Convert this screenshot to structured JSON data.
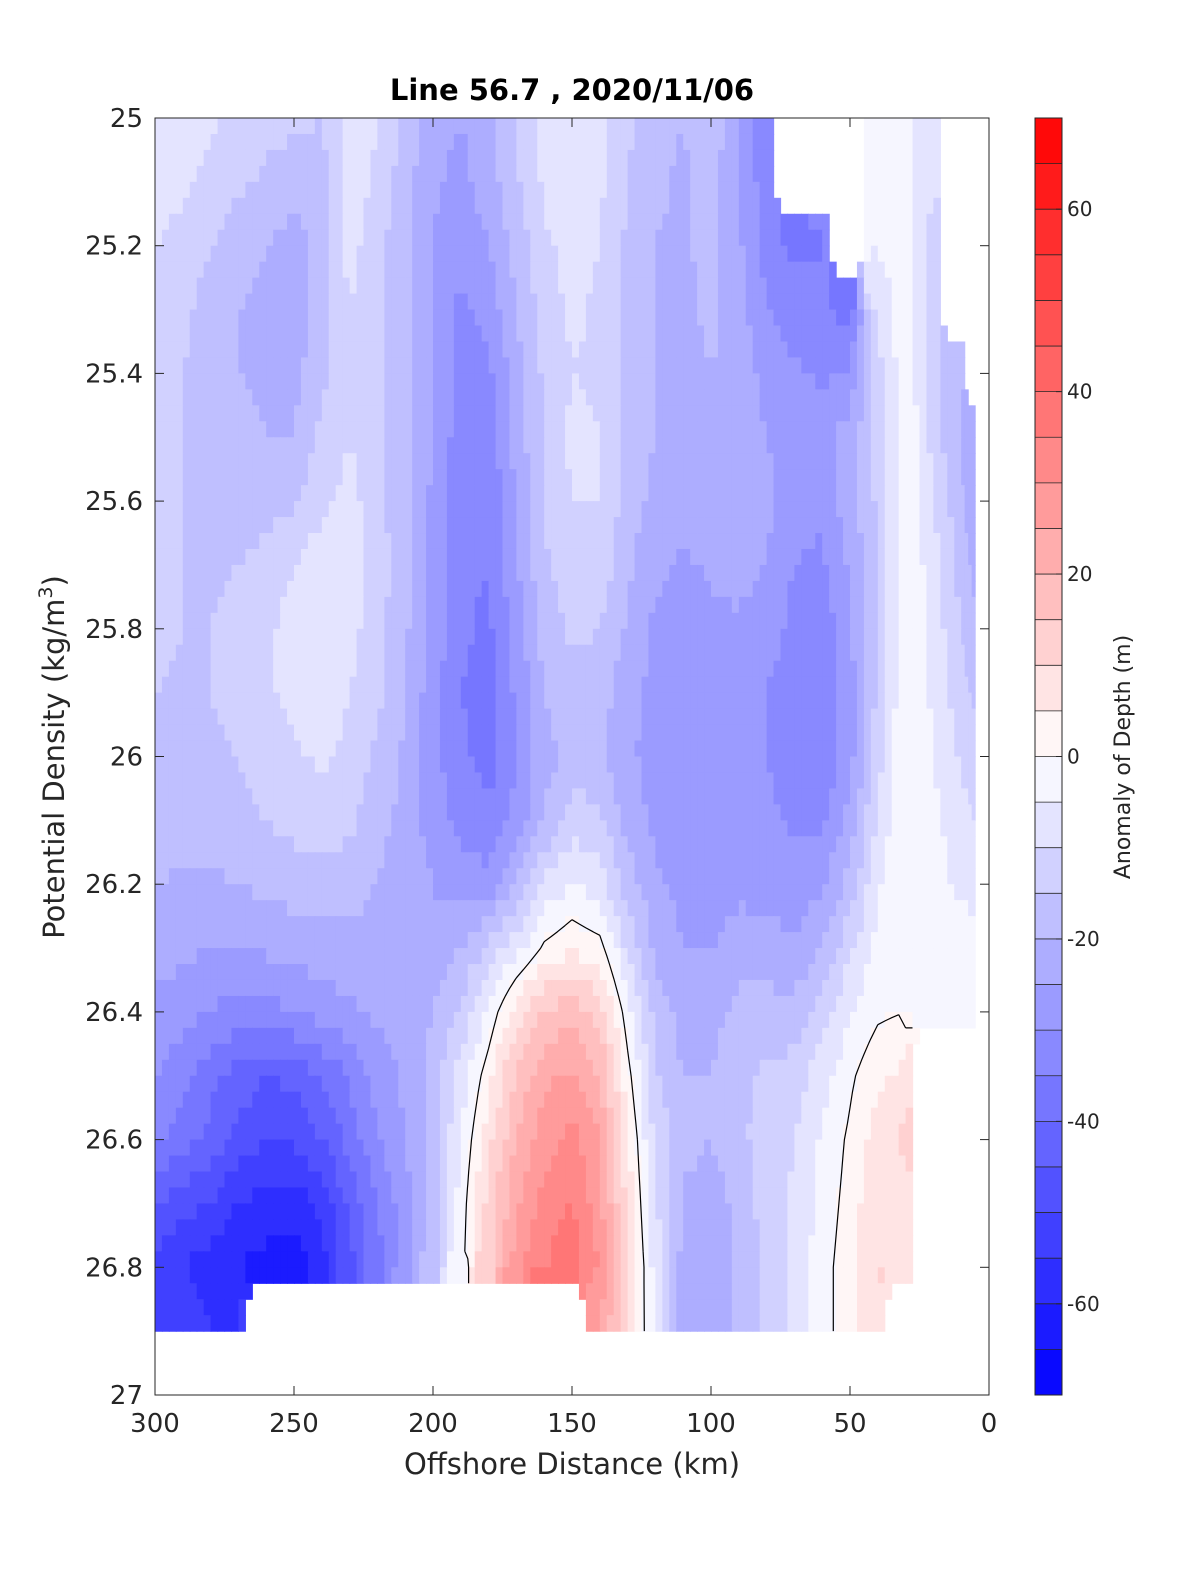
{
  "chart_data": {
    "type": "heatmap",
    "title": "Line 56.7 , 2020/11/06",
    "xlabel": "Offshore Distance (km)",
    "ylabel_main": "Potential Density (kg/m",
    "ylabel_sup": "3",
    "ylabel_close": ")",
    "colorbar_label": "Anomaly of Depth (m)",
    "xlim": [
      300,
      0
    ],
    "ylim": [
      25,
      27
    ],
    "x_reversed": true,
    "y_reversed": true,
    "xticks": [
      300,
      250,
      200,
      150,
      100,
      50,
      0
    ],
    "xtick_labels": [
      "300",
      "250",
      "200",
      "150",
      "100",
      "50",
      "0"
    ],
    "yticks": [
      25,
      25.2,
      25.4,
      25.6,
      25.8,
      26,
      26.2,
      26.4,
      26.6,
      26.8,
      27
    ],
    "ytick_labels": [
      "25",
      "25.2",
      "25.4",
      "25.6",
      "25.8",
      "26",
      "26.2",
      "26.4",
      "26.6",
      "26.8",
      "27"
    ],
    "colorbar_range": [
      -70,
      70
    ],
    "colorbar_step": 5,
    "colorbar_ticks": [
      -60,
      -40,
      -20,
      0,
      20,
      40,
      60
    ],
    "colorbar_tick_labels": [
      "-60",
      "-40",
      "-20",
      "0",
      "20",
      "40",
      "60"
    ],
    "zero_contour": true,
    "x": [
      300,
      290,
      280,
      270,
      260,
      250,
      240,
      230,
      220,
      210,
      200,
      190,
      180,
      170,
      160,
      150,
      140,
      130,
      120,
      110,
      100,
      90,
      80,
      70,
      60,
      50,
      40,
      30,
      20,
      10,
      5
    ],
    "y": [
      25.0,
      25.1,
      25.2,
      25.3,
      25.4,
      25.5,
      25.6,
      25.7,
      25.8,
      25.9,
      26.0,
      26.1,
      26.2,
      26.3,
      26.4,
      26.5,
      26.6,
      26.7,
      26.8,
      26.9
    ],
    "values": [
      [
        -7,
        -8,
        -9,
        -11,
        -13,
        -14,
        -15,
        -7,
        -10,
        -17,
        -22,
        -25,
        -21,
        -15,
        -8,
        -6,
        -8,
        -14,
        -18,
        -20,
        -17,
        -24,
        -35,
        null,
        null,
        null,
        -2,
        -3,
        -10,
        null,
        null
      ],
      [
        -8,
        -9,
        -11,
        -14,
        -16,
        -18,
        -17,
        -7,
        -11,
        -18,
        -24,
        -27,
        -22,
        -16,
        -9,
        -7,
        -9,
        -15,
        -19,
        -21,
        -18,
        -25,
        -33,
        null,
        null,
        null,
        -3,
        -2,
        -10,
        null,
        null
      ],
      [
        -10,
        -12,
        -15,
        -18,
        -20,
        -22,
        -18,
        -8,
        -13,
        -19,
        -25,
        -29,
        -25,
        -18,
        -11,
        -8,
        -10,
        -16,
        -20,
        -21,
        -18,
        -24,
        -32,
        -36,
        -35,
        null,
        -5,
        -2,
        -12,
        null,
        null
      ],
      [
        -12,
        -14,
        -17,
        -20,
        -22,
        -23,
        -18,
        -10,
        -14,
        -19,
        -25,
        -31,
        -28,
        -20,
        -13,
        -9,
        -11,
        -16,
        -20,
        -21,
        -19,
        -23,
        -30,
        -33,
        -34,
        -37,
        -8,
        -2,
        -13,
        null,
        null
      ],
      [
        -13,
        -15,
        -18,
        -20,
        -21,
        -22,
        -16,
        -11,
        -14,
        -19,
        -25,
        -33,
        -31,
        -22,
        -14,
        -10,
        -11,
        -16,
        -20,
        -22,
        -20,
        -21,
        -27,
        -29,
        -31,
        -29,
        -12,
        -1,
        -13,
        -20,
        null
      ],
      [
        -14,
        -15,
        -18,
        -19,
        -20,
        -20,
        -14,
        -10,
        -14,
        -19,
        -25,
        -33,
        -33,
        -23,
        -14,
        -9,
        -10,
        -16,
        -20,
        -22,
        -20,
        -20,
        -25,
        -27,
        -27,
        -22,
        -14,
        0,
        -12,
        -21,
        -25
      ],
      [
        -14,
        -15,
        -17,
        -18,
        -17,
        -16,
        -11,
        -8,
        -13,
        -19,
        -26,
        -34,
        -35,
        -25,
        -15,
        -10,
        -10,
        -17,
        -22,
        -24,
        -22,
        -21,
        -24,
        -27,
        -29,
        -22,
        -14,
        0,
        -10,
        -19,
        -24
      ],
      [
        -14,
        -15,
        -16,
        -15,
        -13,
        -10,
        -7,
        -8,
        -12,
        -19,
        -27,
        -34,
        -35,
        -26,
        -16,
        -11,
        -12,
        -19,
        -24,
        -26,
        -24,
        -23,
        -25,
        -30,
        -31,
        -24,
        -15,
        0,
        -8,
        -17,
        -22
      ],
      [
        -14,
        -15,
        -15,
        -14,
        -11,
        -8,
        -5,
        -8,
        -13,
        -19,
        -27,
        -34,
        -36,
        -28,
        -18,
        -14,
        -15,
        -21,
        -26,
        -28,
        -27,
        -26,
        -27,
        -32,
        -33,
        -26,
        -15,
        0,
        -7,
        -15,
        -19
      ],
      [
        -15,
        -16,
        -15,
        -14,
        -11,
        -8,
        -5,
        -10,
        -14,
        -20,
        -28,
        -35,
        -38,
        -29,
        -20,
        -17,
        -18,
        -23,
        -27,
        -29,
        -29,
        -28,
        -30,
        -33,
        -35,
        -27,
        -14,
        0,
        -6,
        -13,
        -16
      ],
      [
        -16,
        -17,
        -16,
        -15,
        -13,
        -11,
        -9,
        -12,
        -16,
        -21,
        -28,
        -34,
        -37,
        -30,
        -22,
        -18,
        -19,
        -24,
        -27,
        -29,
        -30,
        -29,
        -30,
        -33,
        -35,
        -27,
        -12,
        0,
        -5,
        -11,
        -13
      ],
      [
        -17,
        -18,
        -18,
        -17,
        -15,
        -13,
        -12,
        -14,
        -18,
        -22,
        -27,
        -32,
        -34,
        -28,
        -20,
        -12,
        -14,
        -22,
        -26,
        -28,
        -29,
        -28,
        -29,
        -31,
        -31,
        -23,
        -9,
        0,
        -4,
        -8,
        -10
      ],
      [
        -20,
        -21,
        -21,
        -20,
        -19,
        -18,
        -17,
        -18,
        -20,
        -23,
        -25,
        -28,
        -28,
        -19,
        -9,
        -5,
        -8,
        -17,
        -24,
        -27,
        -27,
        -26,
        -27,
        -28,
        -26,
        -18,
        -6,
        0,
        -3,
        -6,
        -7
      ],
      [
        -23,
        -24,
        -25,
        -25,
        -24,
        -23,
        -22,
        -22,
        -22,
        -24,
        -23,
        -20,
        -14,
        -7,
        1,
        4,
        2,
        -11,
        -21,
        -25,
        -25,
        -23,
        -23,
        -24,
        -20,
        -11,
        -3,
        0,
        -1,
        -2,
        -3
      ],
      [
        -26,
        -28,
        -30,
        -32,
        -32,
        -30,
        -28,
        -26,
        -24,
        -23,
        -20,
        -14,
        -4,
        8,
        15,
        18,
        13,
        -3,
        -17,
        -22,
        -22,
        -18,
        -18,
        -18,
        -13,
        -5,
        -1,
        0,
        -1,
        -1,
        -1
      ],
      [
        -30,
        -34,
        -38,
        -42,
        -45,
        -44,
        -40,
        -34,
        -28,
        -24,
        -18,
        -8,
        3,
        16,
        24,
        26,
        20,
        2,
        -14,
        -20,
        -20,
        -16,
        -14,
        -13,
        -7,
        -1,
        4,
        6,
        null,
        null,
        null
      ],
      [
        -34,
        -38,
        -42,
        -47,
        -50,
        -49,
        -45,
        -38,
        -31,
        -25,
        -17,
        -5,
        8,
        20,
        28,
        32,
        25,
        6,
        -11,
        -18,
        -20,
        -16,
        -13,
        -10,
        -4,
        1,
        8,
        11,
        null,
        null,
        null
      ],
      [
        -45,
        -48,
        -50,
        -55,
        -57,
        -58,
        -53,
        -44,
        -35,
        -27,
        -17,
        -3,
        12,
        24,
        32,
        35,
        27,
        8,
        -9,
        -21,
        -23,
        -18,
        -13,
        -9,
        -3,
        2,
        10,
        9,
        null,
        null,
        null
      ],
      [
        -52,
        -55,
        -58,
        -60,
        -62,
        -63,
        -58,
        -47,
        -37,
        -29,
        -17,
        -2,
        14,
        27,
        35,
        38,
        30,
        10,
        -7,
        -22,
        -25,
        -19,
        -14,
        -9,
        -2,
        3,
        10,
        8,
        null,
        null,
        null
      ],
      [
        -50,
        -52,
        -55,
        -55,
        null,
        null,
        null,
        null,
        null,
        null,
        null,
        null,
        null,
        null,
        null,
        null,
        25,
        9,
        -6,
        -22,
        -25,
        -19,
        -14,
        -9,
        -2,
        3,
        9,
        null,
        null,
        null,
        null
      ]
    ]
  }
}
